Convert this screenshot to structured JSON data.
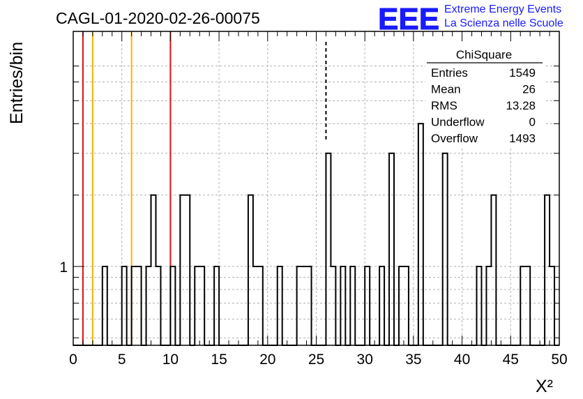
{
  "chart_data": {
    "type": "histogram",
    "title": "CAGL-01-2020-02-26-00075",
    "xlabel": "X²",
    "ylabel": "Entries/bin",
    "xlim": [
      0,
      50
    ],
    "ylog": true,
    "ytick_labels": [
      "1"
    ],
    "xticks": [
      0,
      5,
      10,
      15,
      20,
      25,
      30,
      35,
      40,
      45,
      50
    ],
    "grid": true,
    "bin_width": 0.5,
    "bins": [
      {
        "x0": 3.0,
        "v": 1
      },
      {
        "x0": 5.0,
        "v": 1
      },
      {
        "x0": 6.0,
        "v": 1
      },
      {
        "x0": 6.5,
        "v": 1
      },
      {
        "x0": 7.5,
        "v": 1
      },
      {
        "x0": 8.0,
        "v": 2
      },
      {
        "x0": 8.5,
        "v": 1
      },
      {
        "x0": 10.0,
        "v": 1
      },
      {
        "x0": 11.0,
        "v": 2
      },
      {
        "x0": 11.5,
        "v": 2
      },
      {
        "x0": 12.5,
        "v": 1
      },
      {
        "x0": 13.0,
        "v": 1
      },
      {
        "x0": 14.5,
        "v": 1
      },
      {
        "x0": 18.0,
        "v": 2
      },
      {
        "x0": 18.5,
        "v": 1
      },
      {
        "x0": 19.0,
        "v": 1
      },
      {
        "x0": 21.0,
        "v": 1
      },
      {
        "x0": 23.0,
        "v": 1
      },
      {
        "x0": 23.5,
        "v": 1
      },
      {
        "x0": 24.0,
        "v": 1
      },
      {
        "x0": 26.0,
        "v": 3
      },
      {
        "x0": 26.5,
        "v": 1
      },
      {
        "x0": 27.5,
        "v": 1
      },
      {
        "x0": 28.5,
        "v": 1
      },
      {
        "x0": 30.0,
        "v": 1
      },
      {
        "x0": 31.5,
        "v": 1
      },
      {
        "x0": 32.5,
        "v": 3
      },
      {
        "x0": 33.5,
        "v": 1
      },
      {
        "x0": 34.0,
        "v": 1
      },
      {
        "x0": 35.5,
        "v": 4
      },
      {
        "x0": 38.0,
        "v": 3
      },
      {
        "x0": 41.5,
        "v": 1
      },
      {
        "x0": 42.5,
        "v": 1
      },
      {
        "x0": 43.0,
        "v": 2
      },
      {
        "x0": 46.0,
        "v": 1
      },
      {
        "x0": 46.5,
        "v": 1
      },
      {
        "x0": 48.5,
        "v": 2
      },
      {
        "x0": 49.0,
        "v": 1
      }
    ],
    "vertical_lines": [
      {
        "x": 1,
        "color": "#dd1111",
        "style": "solid"
      },
      {
        "x": 2,
        "color": "#f0b400",
        "style": "solid"
      },
      {
        "x": 6,
        "color": "#f0b400",
        "style": "solid"
      },
      {
        "x": 10,
        "color": "#dd1111",
        "style": "solid"
      },
      {
        "x": 26,
        "color": "#000000",
        "style": "dashed"
      }
    ]
  },
  "stats": {
    "title": "ChiSquare",
    "rows": [
      {
        "label": "Entries",
        "value": "1549"
      },
      {
        "label": "Mean",
        "value": "26"
      },
      {
        "label": "RMS",
        "value": "13.28"
      },
      {
        "label": "Underflow",
        "value": "0"
      },
      {
        "label": "Overflow",
        "value": "1493"
      }
    ]
  },
  "logo": {
    "mark": "EEE",
    "line1": "Extreme Energy Events",
    "line2": "La Scienza nelle Scuole",
    "color": "#1a1aff"
  }
}
